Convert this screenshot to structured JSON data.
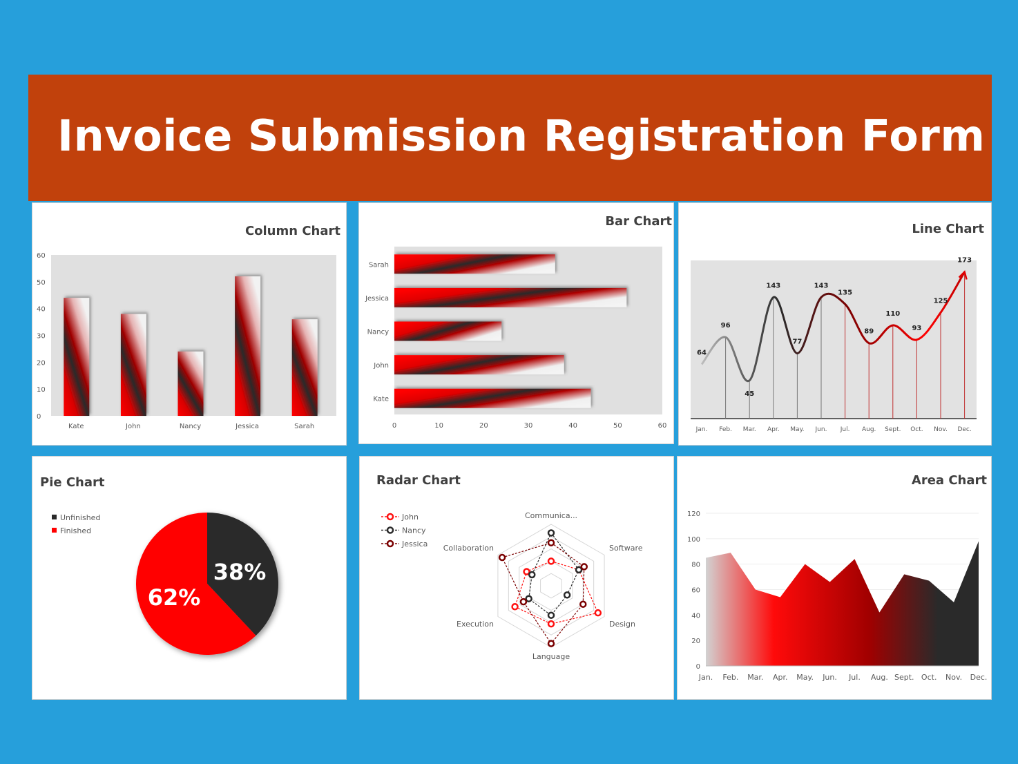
{
  "header": {
    "title": "Invoice Submission Registration Form"
  },
  "colors": {
    "background": "#269fdb",
    "header": "#c1410c",
    "red": "#ff0000",
    "dark": "#2a2a2a",
    "dark_red": "#7a0000",
    "plot_bg": "#e2e2e2"
  },
  "chart_data": [
    {
      "type": "bar",
      "title": "Column Chart",
      "categories": [
        "Kate",
        "John",
        "Nancy",
        "Jessica",
        "Sarah"
      ],
      "values": [
        44,
        38,
        24,
        52,
        36
      ],
      "ylim": [
        0,
        60
      ],
      "yticks": [
        0,
        10,
        20,
        30,
        40,
        50,
        60
      ],
      "xlabel": "",
      "ylabel": "",
      "grid": false
    },
    {
      "type": "bar",
      "orientation": "horizontal",
      "title": "Bar Chart",
      "categories": [
        "Kate",
        "John",
        "Nancy",
        "Jessica",
        "Sarah"
      ],
      "values": [
        44,
        38,
        24,
        52,
        36
      ],
      "xlim": [
        0,
        60
      ],
      "xticks": [
        0,
        10,
        20,
        30,
        40,
        50,
        60
      ],
      "grid": false
    },
    {
      "type": "line",
      "title": "Line Chart",
      "categories": [
        "Jan.",
        "Feb.",
        "Mar.",
        "Apr.",
        "May.",
        "Jun.",
        "Jul.",
        "Aug.",
        "Sept.",
        "Oct.",
        "Nov.",
        "Dec."
      ],
      "values": [
        64,
        96,
        45,
        143,
        77,
        143,
        135,
        89,
        110,
        93,
        125,
        173
      ],
      "data_labels": [
        "64",
        "96",
        "45",
        "143",
        "77",
        "143",
        "135",
        "89",
        "110",
        "93",
        "125",
        "173"
      ],
      "ylim": [
        0,
        180
      ],
      "smooth": true,
      "grid": false
    },
    {
      "type": "pie",
      "title": "Pie Chart",
      "slices": [
        {
          "name": "Unfinished",
          "value": 38,
          "label": "38%",
          "color": "#2a2a2a"
        },
        {
          "name": "Finished",
          "value": 62,
          "label": "62%",
          "color": "#ff0000"
        }
      ],
      "legend": "top-left"
    },
    {
      "type": "radar",
      "title": "Radar Chart",
      "axes": [
        "Communica...",
        "Software",
        "Design",
        "Language",
        "Execution",
        "Collaboration"
      ],
      "rmax": 5,
      "series": [
        {
          "name": "John",
          "color": "#ff1010",
          "values": [
            2.0,
            2.6,
            4.4,
            3.1,
            3.4,
            2.3
          ]
        },
        {
          "name": "Nancy",
          "color": "#2a2a2a",
          "values": [
            4.3,
            2.6,
            1.5,
            2.4,
            2.1,
            1.8
          ]
        },
        {
          "name": "Jessica",
          "color": "#7a0000",
          "values": [
            3.5,
            3.1,
            3.0,
            4.7,
            2.6,
            4.6
          ]
        }
      ],
      "legend": "top-left"
    },
    {
      "type": "area",
      "title": "Area Chart",
      "categories": [
        "Jan.",
        "Feb.",
        "Mar.",
        "Apr.",
        "May.",
        "Jun.",
        "Jul.",
        "Aug.",
        "Sept.",
        "Oct.",
        "Nov.",
        "Dec."
      ],
      "values": [
        85,
        89,
        60,
        54,
        80,
        66,
        84,
        42,
        72,
        67,
        50,
        98
      ],
      "ylim": [
        0,
        120
      ],
      "yticks": [
        0,
        20,
        40,
        60,
        80,
        100,
        120
      ],
      "grid": true
    }
  ]
}
